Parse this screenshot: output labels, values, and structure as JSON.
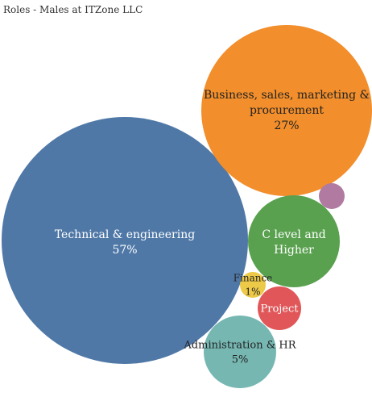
{
  "chart_data": {
    "type": "bubble",
    "title": "Roles - Males at ITZone LLC",
    "series": [
      {
        "label_lines": [
          "Technical & engineering"
        ],
        "value_label": "57%",
        "value": 57,
        "color": "#4f78a7"
      },
      {
        "label_lines": [
          "Business, sales, marketing &",
          "procurement"
        ],
        "value_label": "27%",
        "value": 27,
        "color": "#f28e2b"
      },
      {
        "label_lines": [
          "C level and",
          "Higher"
        ],
        "value_label": "",
        "value": null,
        "color": "#59a14f"
      },
      {
        "label_lines": [
          "Administration & HR"
        ],
        "value_label": "5%",
        "value": 5,
        "color": "#76b7b2"
      },
      {
        "label_lines": [
          "Project"
        ],
        "value_label": "",
        "value": null,
        "color": "#e15759"
      },
      {
        "label_lines": [
          "Finance"
        ],
        "value_label": "1%",
        "value": 1,
        "color": "#edc948"
      },
      {
        "label_lines": [],
        "value_label": "",
        "value": null,
        "color": "#b07aa1"
      }
    ]
  }
}
